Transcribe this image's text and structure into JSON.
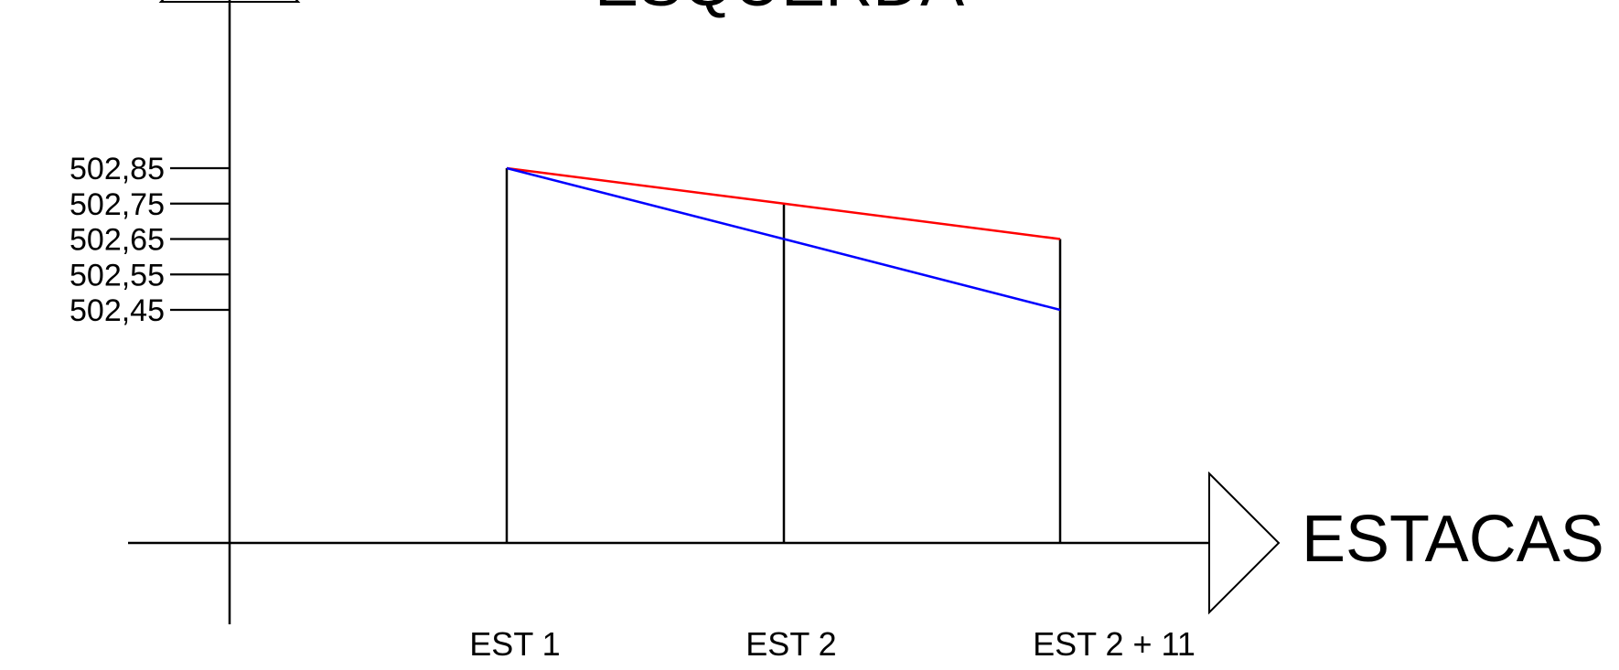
{
  "chart_data": {
    "type": "line",
    "title": "ESQUERDA",
    "xlabel": "ESTACAS",
    "ylabel": "",
    "categories": [
      "EST 1",
      "EST 2",
      "EST 2 + 11"
    ],
    "yticks": [
      "502,85",
      "502,75",
      "502,65",
      "502,55",
      "502,45"
    ],
    "ytick_values": [
      502.85,
      502.75,
      502.65,
      502.55,
      502.45
    ],
    "series": [
      {
        "values": [
          502.85,
          502.75,
          502.65
        ],
        "color": "#ff0000"
      },
      {
        "values": [
          502.85,
          502.65,
          502.45
        ],
        "color": "#0000ff"
      }
    ],
    "stations_vertical_lines": true,
    "grid": false
  }
}
